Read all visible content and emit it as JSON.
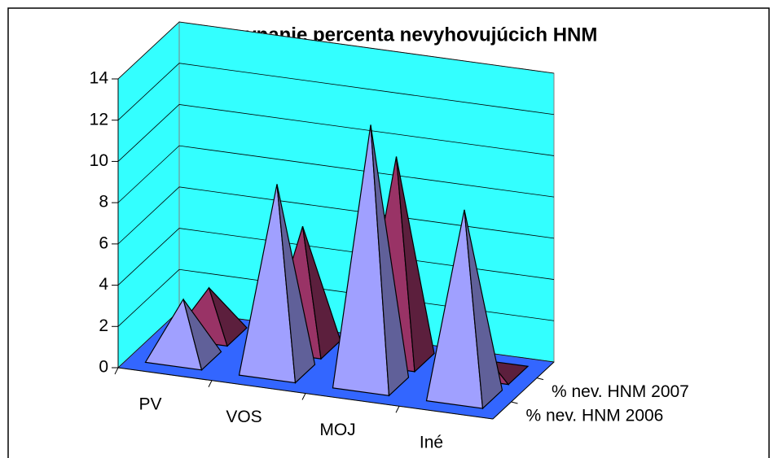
{
  "chart_data": {
    "type": "pyramid3d",
    "title": "Porovnanie percenta nevyhovujúcich HNM",
    "categories": [
      "PV",
      "VOS",
      "MOJ",
      "Iné"
    ],
    "series": [
      {
        "name": "% nev. HNM 2006",
        "color": "#a0a0ff",
        "values": [
          2.8,
          9,
          12.5,
          9
        ]
      },
      {
        "name": "% nev. HNM 2007",
        "color": "#993366",
        "values": [
          2.2,
          5.8,
          9.8,
          0.5
        ]
      }
    ],
    "ylim": [
      0,
      14
    ],
    "yticks": [
      0,
      2,
      4,
      6,
      8,
      10,
      12,
      14
    ],
    "grid": true
  }
}
